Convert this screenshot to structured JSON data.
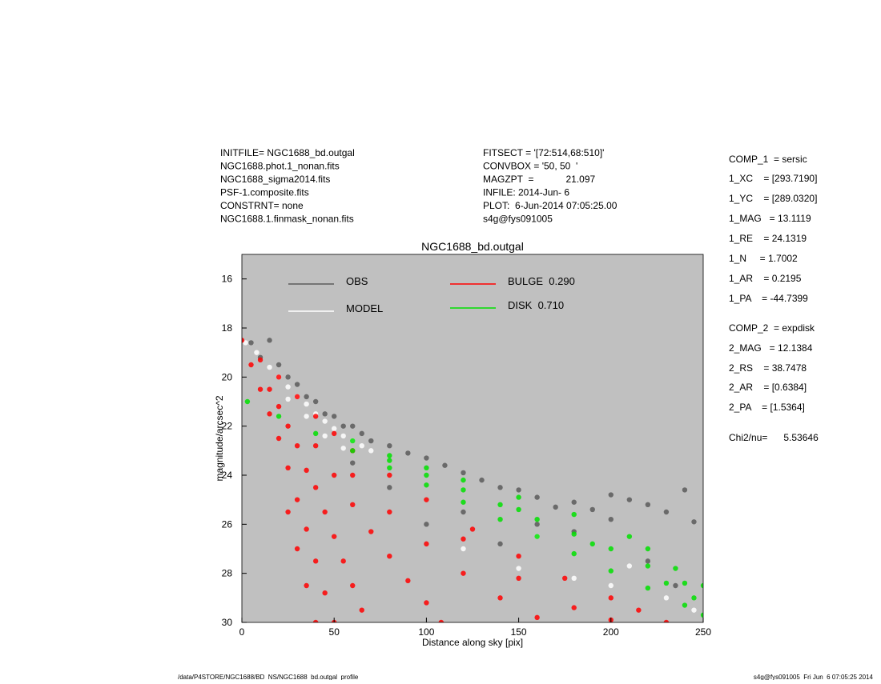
{
  "header": {
    "left": [
      "INITFILE= NGC1688_bd.outgal",
      "NGC1688.phot.1_nonan.fits",
      "NGC1688_sigma2014.fits",
      "PSF-1.composite.fits",
      "CONSTRNT= none",
      "NGC1688.1.finmask_nonan.fits"
    ],
    "middle": [
      "FITSECT = '[72:514,68:510]'",
      "CONVBOX = '50, 50  '",
      "MAGZPT  =            21.097",
      "INFILE: 2014-Jun- 6",
      "PLOT:  6-Jun-2014 07:05:25.00",
      "s4g@fys091005"
    ]
  },
  "fit_parameters": [
    "COMP_1  = sersic",
    "1_XC    = [293.7190]",
    "1_YC    = [289.0320]",
    "1_MAG   = 13.1119",
    "1_RE    = 24.1319",
    "1_N     = 1.7002",
    "1_AR    = 0.2195",
    "1_PA    = -44.7399",
    "COMP_2  = expdisk",
    "2_MAG   = 12.1384",
    "2_RS    = 38.7478",
    "2_AR    = [0.6384]",
    "2_PA    = [1.5364]",
    "Chi2/nu=      5.53646"
  ],
  "footer": {
    "left": "/data/P4STORE/NGC1688/BD_NS/NGC1688_bd.outgal_profile",
    "right": "s4g@fys091005  Fri Jun  6 07:05:25 2014"
  },
  "chart_data": {
    "type": "scatter",
    "title": "NGC1688_bd.outgal",
    "x_label": "Distance along sky [pix]",
    "y_label": "magnitude/arcsec^2",
    "xlim": [
      0,
      250
    ],
    "ylim": [
      15,
      30
    ],
    "y_reversed": true,
    "xticks": [
      0,
      50,
      100,
      150,
      200,
      250
    ],
    "yticks": [
      16,
      18,
      20,
      22,
      24,
      26,
      28,
      30
    ],
    "background": "#c0c0c0",
    "series": [
      {
        "name": "OBS",
        "color": "#5a5a5a",
        "x": [
          5,
          10,
          15,
          20,
          25,
          30,
          35,
          40,
          45,
          50,
          55,
          60,
          65,
          70,
          80,
          90,
          100,
          110,
          120,
          130,
          140,
          150,
          160,
          170,
          180,
          190,
          200,
          210,
          220,
          230,
          240,
          245,
          60,
          80,
          100,
          120,
          140,
          160,
          180,
          200,
          220,
          235
        ],
        "y": [
          18.6,
          19.2,
          18.5,
          19.5,
          20,
          20.3,
          20.8,
          21,
          21.5,
          21.6,
          22,
          22,
          22.3,
          22.6,
          22.8,
          23.1,
          23.3,
          23.6,
          23.9,
          24.2,
          24.5,
          24.6,
          24.9,
          25.3,
          25.1,
          25.4,
          24.8,
          25,
          25.2,
          25.5,
          24.6,
          25.9,
          23.5,
          24.5,
          26,
          25.5,
          26.8,
          26,
          26.3,
          25.8,
          27.5,
          28.5
        ]
      },
      {
        "name": "MODEL",
        "color": "#ffffff",
        "x": [
          2,
          8,
          15,
          20,
          25,
          30,
          35,
          40,
          45,
          50,
          55,
          60,
          65,
          70,
          25,
          35,
          45,
          55,
          120,
          150,
          180,
          200,
          230,
          245,
          160,
          210
        ],
        "y": [
          18.6,
          19,
          19.6,
          20,
          20.4,
          20.8,
          21.1,
          21.5,
          21.8,
          22.1,
          22.4,
          22.6,
          22.8,
          23,
          20.9,
          21.6,
          22.4,
          22.9,
          27,
          27.8,
          28.2,
          28.5,
          29,
          29.5,
          26.5,
          27.7
        ]
      },
      {
        "name": "BULGE  0.290",
        "color": "#ff0000",
        "x": [
          0,
          10,
          20,
          30,
          40,
          50,
          60,
          80,
          100,
          125,
          150,
          175,
          200,
          215,
          230,
          5,
          10,
          15,
          20,
          25,
          30,
          35,
          40,
          45,
          50,
          15,
          20,
          25,
          30,
          35,
          40,
          45,
          50,
          55,
          60,
          65,
          40,
          50,
          60,
          70,
          80,
          90,
          100,
          108,
          60,
          80,
          100,
          120,
          140,
          160,
          120,
          150,
          180,
          200,
          25,
          30,
          35,
          40
        ],
        "y": [
          18.5,
          19.3,
          20,
          20.8,
          21.6,
          22.3,
          23,
          24,
          25,
          26.2,
          27.3,
          28.2,
          29,
          29.5,
          30,
          19.5,
          20.5,
          21.5,
          22.5,
          23.7,
          25,
          26.2,
          27.5,
          28.8,
          30,
          20.5,
          21.2,
          22,
          22.8,
          23.8,
          24.5,
          25.5,
          26.5,
          27.5,
          28.5,
          29.5,
          22.8,
          24,
          25.2,
          26.3,
          27.3,
          28.3,
          29.2,
          30,
          24,
          25.5,
          26.8,
          28,
          29,
          29.8,
          26.6,
          28.2,
          29.4,
          29.9,
          25.5,
          27,
          28.5,
          30
        ]
      },
      {
        "name": "DISK  0.710",
        "color": "#00e000",
        "x": [
          3,
          20,
          40,
          60,
          80,
          100,
          120,
          140,
          160,
          180,
          200,
          220,
          240,
          250,
          60,
          80,
          100,
          120,
          150,
          180,
          210,
          220,
          235,
          250,
          80,
          100,
          120,
          140,
          160,
          180,
          200,
          220,
          240,
          150,
          190,
          230,
          245
        ],
        "y": [
          21,
          21.6,
          22.3,
          23,
          23.7,
          24.4,
          25.1,
          25.8,
          26.5,
          27.2,
          27.9,
          28.6,
          29.3,
          29.7,
          22.6,
          23.2,
          23.7,
          24.2,
          24.9,
          25.6,
          26.5,
          27,
          27.8,
          28.5,
          23.4,
          24,
          24.6,
          25.2,
          25.8,
          26.4,
          27,
          27.7,
          28.4,
          25.4,
          26.8,
          28.4,
          29
        ]
      }
    ]
  }
}
